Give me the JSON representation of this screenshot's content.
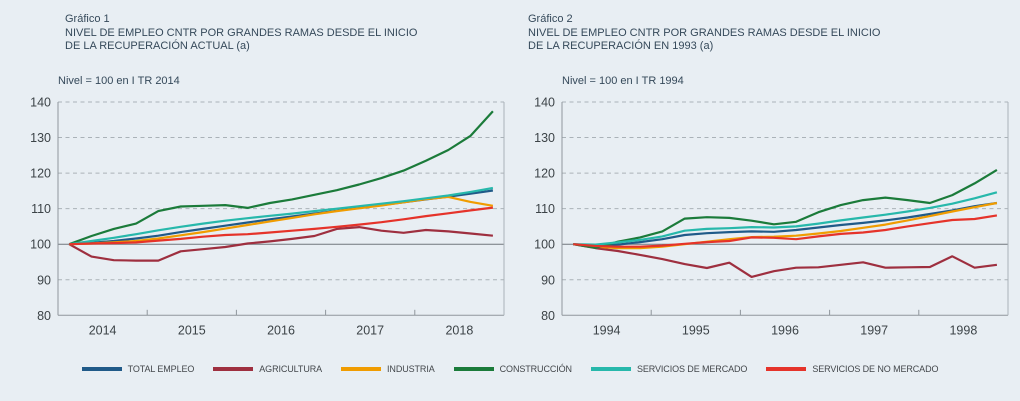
{
  "page": {
    "background": "#e8eef3"
  },
  "charts": [
    {
      "label": "Gráfico 1",
      "title_lines": [
        "NIVEL DE EMPLEO CNTR POR GRANDES RAMAS DESDE EL INICIO",
        "DE LA RECUPERACIÓN ACTUAL (a)"
      ],
      "subtitle": "Nivel = 100 en I TR 2014"
    },
    {
      "label": "Gráfico 2",
      "title_lines": [
        "NIVEL DE EMPLEO CNTR POR GRANDES RAMAS DESDE EL INICIO",
        "DE LA RECUPERACIÓN EN 1993 (a)"
      ],
      "subtitle": "Nivel = 100 en I TR 1994"
    }
  ],
  "legend": {
    "items": [
      {
        "label": "TOTAL EMPLEO",
        "color": "#205a88"
      },
      {
        "label": "AGRICULTURA",
        "color": "#9e2f3f"
      },
      {
        "label": "INDUSTRIA",
        "color": "#f09c00"
      },
      {
        "label": "CONSTRUCCIÓN",
        "color": "#1b7b3a"
      },
      {
        "label": "SERVICIOS DE MERCADO",
        "color": "#27b8ab"
      },
      {
        "label": "SERVICIOS DE NO MERCADO",
        "color": "#e5332a"
      }
    ]
  },
  "chart_data": [
    {
      "type": "line",
      "title": "Gráfico 1 - Nivel de empleo CNTR por grandes ramas desde el inicio de la recuperación actual",
      "x_frequency": "quarterly",
      "x_start": "2014Q1",
      "xticks": [
        "2014",
        "2015",
        "2016",
        "2017",
        "2018"
      ],
      "ylim": [
        80,
        140
      ],
      "yticks": [
        80,
        90,
        100,
        110,
        120,
        130,
        140
      ],
      "baseline": 100,
      "grid": "dashed-horizontal",
      "legend_position": "bottom-shared",
      "series": [
        {
          "name": "TOTAL EMPLEO",
          "values": [
            100,
            100.4,
            100.9,
            101.6,
            102.4,
            103.4,
            104.3,
            105.2,
            106.1,
            107.0,
            107.8,
            108.6,
            109.4,
            110.2,
            111.0,
            111.8,
            112.6,
            113.4,
            114.2,
            115.1
          ]
        },
        {
          "name": "AGRICULTURA",
          "values": [
            100,
            96.5,
            95.5,
            95.4,
            95.4,
            98.0,
            98.6,
            99.2,
            100.2,
            100.8,
            101.5,
            102.3,
            104.3,
            104.8,
            103.8,
            103.2,
            104.0,
            103.6,
            103.0,
            102.4
          ]
        },
        {
          "name": "INDUSTRIA",
          "values": [
            100,
            100.2,
            100.5,
            100.9,
            101.6,
            102.5,
            103.4,
            104.4,
            105.4,
            106.4,
            107.4,
            108.4,
            109.3,
            110.1,
            110.9,
            111.8,
            112.7,
            113.3,
            111.9,
            110.8
          ]
        },
        {
          "name": "CONSTRUCCIÓN",
          "values": [
            100,
            102.3,
            104.3,
            105.8,
            109.3,
            110.6,
            110.8,
            111.0,
            110.2,
            111.6,
            112.6,
            113.9,
            115.2,
            116.8,
            118.6,
            120.7,
            123.5,
            126.5,
            130.5,
            137.4
          ]
        },
        {
          "name": "SERVICIOS DE MERCADO",
          "values": [
            100,
            100.9,
            101.8,
            102.8,
            103.9,
            104.9,
            105.8,
            106.6,
            107.3,
            108.0,
            108.6,
            109.3,
            110.0,
            110.7,
            111.4,
            112.1,
            112.9,
            113.7,
            114.7,
            115.8
          ]
        },
        {
          "name": "SERVICIOS DE NO MERCADO",
          "values": [
            100,
            100.2,
            100.3,
            100.5,
            101.0,
            101.5,
            102.1,
            102.6,
            102.8,
            103.3,
            103.8,
            104.3,
            104.9,
            105.5,
            106.2,
            107.0,
            107.9,
            108.7,
            109.5,
            110.3
          ]
        }
      ]
    },
    {
      "type": "line",
      "title": "Gráfico 2 - Nivel de empleo CNTR por grandes ramas desde el inicio de la recuperación en 1993",
      "x_frequency": "quarterly",
      "x_start": "1994Q1",
      "xticks": [
        "1994",
        "1995",
        "1996",
        "1997",
        "1998"
      ],
      "ylim": [
        80,
        140
      ],
      "yticks": [
        80,
        90,
        100,
        110,
        120,
        130,
        140
      ],
      "baseline": 100,
      "grid": "dashed-horizontal",
      "legend_position": "bottom-shared",
      "series": [
        {
          "name": "TOTAL EMPLEO",
          "values": [
            100,
            99.6,
            99.9,
            100.6,
            101.4,
            102.6,
            103.1,
            103.4,
            103.6,
            103.5,
            104.0,
            104.7,
            105.4,
            106.0,
            106.7,
            107.5,
            108.5,
            109.5,
            110.7,
            111.6
          ]
        },
        {
          "name": "AGRICULTURA",
          "values": [
            100,
            98.9,
            98.1,
            97.0,
            95.8,
            94.4,
            93.3,
            94.8,
            90.8,
            92.4,
            93.4,
            93.5,
            94.2,
            94.9,
            93.4,
            93.5,
            93.6,
            96.6,
            93.4,
            94.2
          ]
        },
        {
          "name": "INDUSTRIA",
          "values": [
            100,
            99.3,
            98.9,
            98.9,
            99.3,
            100.0,
            100.7,
            101.4,
            102.0,
            102.1,
            102.4,
            103.0,
            103.7,
            104.6,
            105.5,
            106.7,
            107.9,
            109.2,
            110.4,
            111.6
          ]
        },
        {
          "name": "CONSTRUCCIÓN",
          "values": [
            100,
            99.0,
            100.7,
            101.9,
            103.6,
            107.2,
            107.6,
            107.4,
            106.6,
            105.6,
            106.3,
            109.0,
            111.0,
            112.4,
            113.1,
            112.4,
            111.6,
            113.8,
            117.1,
            120.9
          ]
        },
        {
          "name": "SERVICIOS DE MERCADO",
          "values": [
            100,
            99.9,
            100.5,
            101.2,
            102.2,
            103.8,
            104.3,
            104.5,
            104.8,
            104.7,
            105.0,
            105.8,
            106.7,
            107.5,
            108.3,
            109.2,
            110.2,
            111.4,
            112.9,
            114.6
          ]
        },
        {
          "name": "SERVICIOS DE NO MERCADO",
          "values": [
            100,
            99.5,
            99.3,
            99.3,
            99.6,
            100.1,
            100.6,
            100.9,
            101.9,
            101.8,
            101.4,
            102.2,
            102.9,
            103.3,
            104.0,
            105.0,
            105.9,
            106.8,
            107.1,
            108.1
          ]
        }
      ]
    }
  ]
}
